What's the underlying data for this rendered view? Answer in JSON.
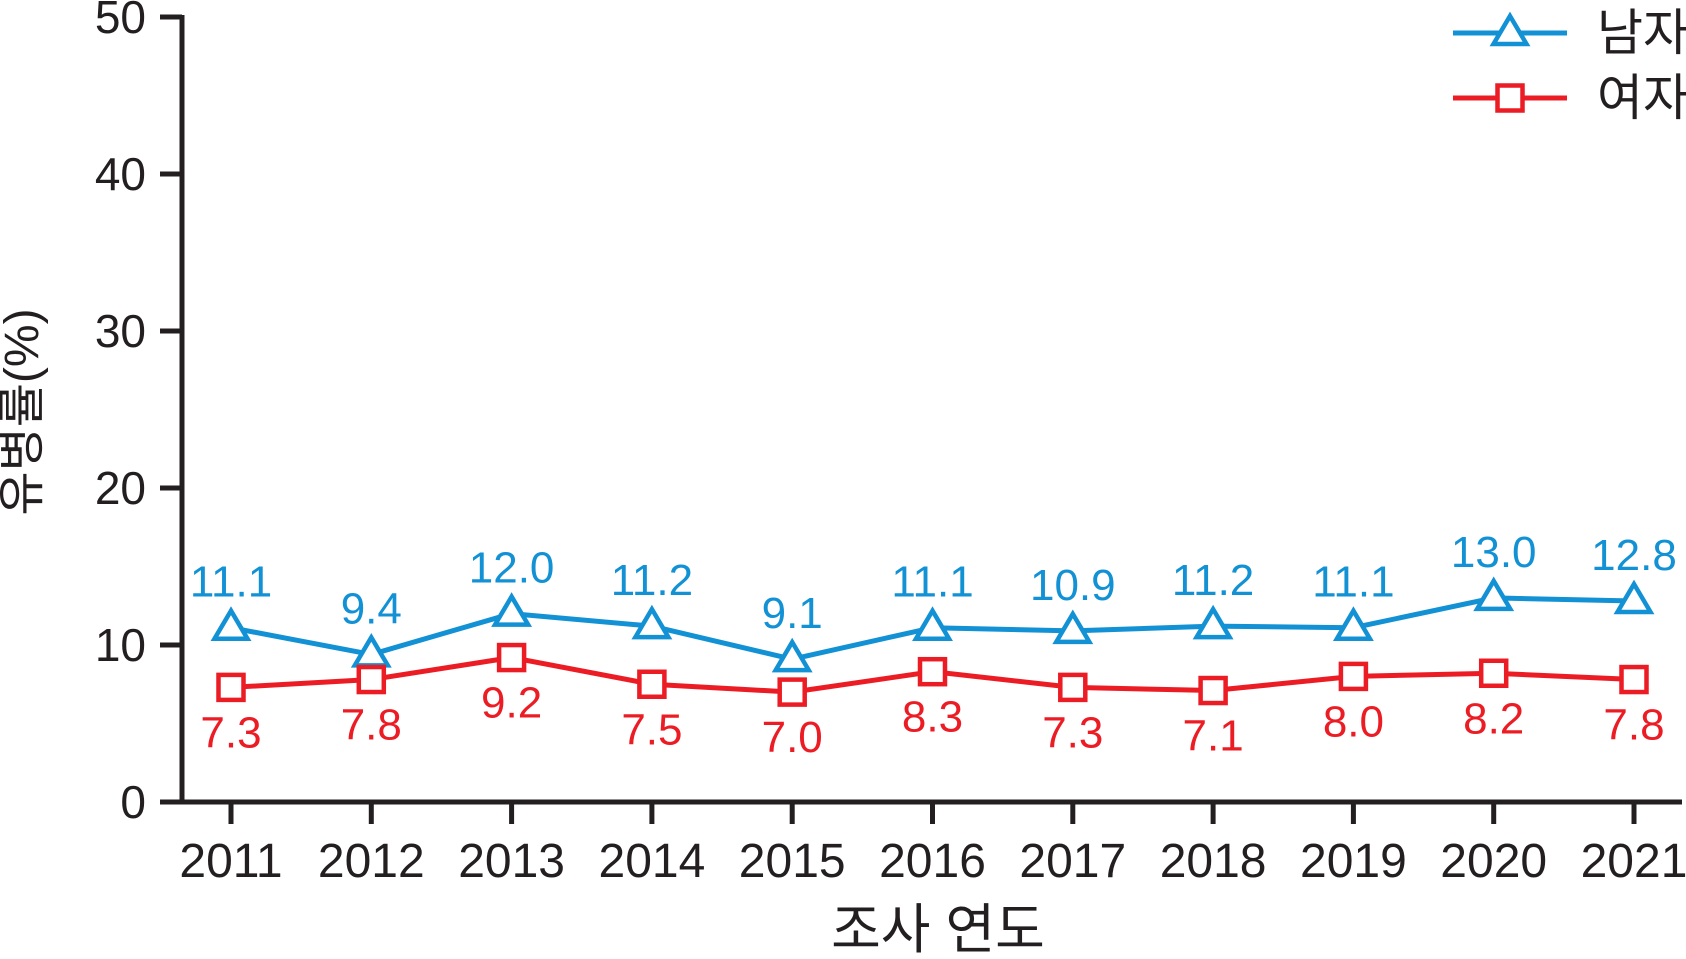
{
  "figure": {
    "background": "#ffffff",
    "text_color": "#231f20"
  },
  "chart_data": {
    "type": "line",
    "title": "",
    "xlabel": "조사 연도",
    "ylabel": "유병률(%)",
    "x": [
      2011,
      2012,
      2013,
      2014,
      2015,
      2016,
      2017,
      2018,
      2019,
      2020,
      2021
    ],
    "ylim": [
      0,
      50
    ],
    "yticks": [
      0,
      10,
      20,
      30,
      40,
      50
    ],
    "grid": false,
    "legend_position": "top-right",
    "axis_color": "#231f20",
    "series": [
      {
        "id": "male",
        "name": "남자",
        "color": "#1291d4",
        "marker": "open-triangle",
        "values": [
          11.1,
          9.4,
          12.0,
          11.2,
          9.1,
          11.1,
          10.9,
          11.2,
          11.1,
          13.0,
          12.8
        ],
        "labels": [
          "11.1",
          "9.4",
          "12.0",
          "11.2",
          "9.1",
          "11.1",
          "10.9",
          "11.2",
          "11.1",
          "13.0",
          "12.8"
        ]
      },
      {
        "id": "female",
        "name": "여자",
        "color": "#ec1c24",
        "marker": "open-square",
        "values": [
          7.3,
          7.8,
          9.2,
          7.5,
          7.0,
          8.3,
          7.3,
          7.1,
          8.0,
          8.2,
          7.8
        ],
        "labels": [
          "7.3",
          "7.8",
          "9.2",
          "7.5",
          "7.0",
          "8.3",
          "7.3",
          "7.1",
          "8.0",
          "8.2",
          "7.8"
        ]
      }
    ]
  }
}
